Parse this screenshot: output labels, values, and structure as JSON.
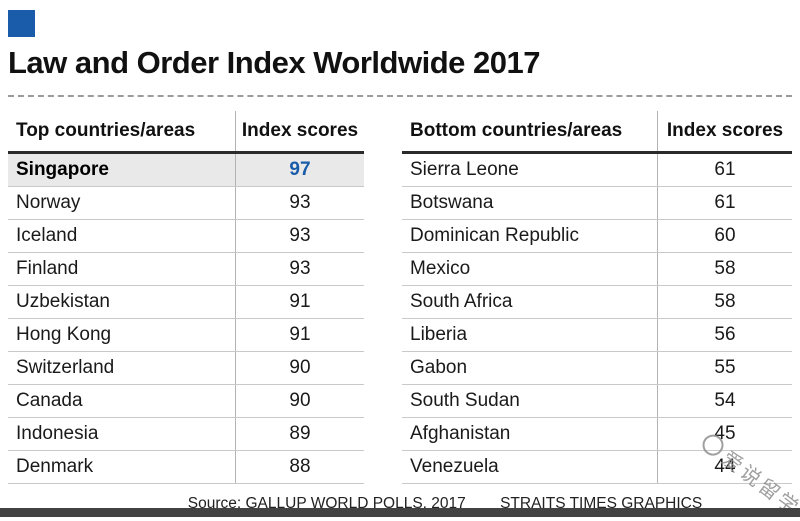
{
  "accent_color": "#1a5caa",
  "title": "Law and Order Index Worldwide 2017",
  "left_table": {
    "headers": {
      "country": "Top countries/areas",
      "score": "Index scores"
    },
    "rows": [
      {
        "country": "Singapore",
        "score": "97"
      },
      {
        "country": "Norway",
        "score": "93"
      },
      {
        "country": "Iceland",
        "score": "93"
      },
      {
        "country": "Finland",
        "score": "93"
      },
      {
        "country": "Uzbekistan",
        "score": "91"
      },
      {
        "country": "Hong Kong",
        "score": "91"
      },
      {
        "country": "Switzerland",
        "score": "90"
      },
      {
        "country": "Canada",
        "score": "90"
      },
      {
        "country": "Indonesia",
        "score": "89"
      },
      {
        "country": "Denmark",
        "score": "88"
      }
    ]
  },
  "right_table": {
    "headers": {
      "country": "Bottom countries/areas",
      "score": "Index scores"
    },
    "rows": [
      {
        "country": "Sierra Leone",
        "score": "61"
      },
      {
        "country": "Botswana",
        "score": "61"
      },
      {
        "country": "Dominican Republic",
        "score": "60"
      },
      {
        "country": "Mexico",
        "score": "58"
      },
      {
        "country": "South Africa",
        "score": "58"
      },
      {
        "country": "Liberia",
        "score": "56"
      },
      {
        "country": "Gabon",
        "score": "55"
      },
      {
        "country": "South Sudan",
        "score": "54"
      },
      {
        "country": "Afghanistan",
        "score": "45"
      },
      {
        "country": "Venezuela",
        "score": "44"
      }
    ]
  },
  "footer": {
    "source": "Source: GALLUP WORLD POLLS, 2017",
    "credit": "STRAITS TIMES GRAPHICS"
  },
  "watermark": {
    "text": "爱说留学"
  },
  "chart_data": {
    "type": "table",
    "title": "Law and Order Index Worldwide 2017",
    "tables": [
      {
        "name": "Top countries/areas",
        "columns": [
          "Country/area",
          "Index score"
        ],
        "rows": [
          [
            "Singapore",
            97
          ],
          [
            "Norway",
            93
          ],
          [
            "Iceland",
            93
          ],
          [
            "Finland",
            93
          ],
          [
            "Uzbekistan",
            91
          ],
          [
            "Hong Kong",
            91
          ],
          [
            "Switzerland",
            90
          ],
          [
            "Canada",
            90
          ],
          [
            "Indonesia",
            89
          ],
          [
            "Denmark",
            88
          ]
        ],
        "highlighted_row": "Singapore"
      },
      {
        "name": "Bottom countries/areas",
        "columns": [
          "Country/area",
          "Index score"
        ],
        "rows": [
          [
            "Sierra Leone",
            61
          ],
          [
            "Botswana",
            61
          ],
          [
            "Dominican Republic",
            60
          ],
          [
            "Mexico",
            58
          ],
          [
            "South Africa",
            58
          ],
          [
            "Liberia",
            56
          ],
          [
            "Gabon",
            55
          ],
          [
            "South Sudan",
            54
          ],
          [
            "Afghanistan",
            45
          ],
          [
            "Venezuela",
            44
          ]
        ]
      }
    ],
    "source": "GALLUP WORLD POLLS, 2017",
    "credit": "STRAITS TIMES GRAPHICS"
  }
}
